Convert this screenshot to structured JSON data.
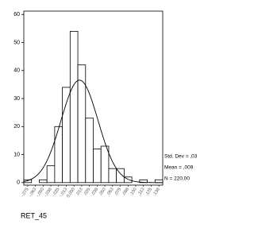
{
  "chart_data": {
    "type": "histogram",
    "x_label": "RET_45",
    "bins": [
      -0.08125,
      -0.06875,
      -0.05625,
      -0.04375,
      -0.03125,
      -0.01875,
      -0.00625,
      0.00625,
      0.01875,
      0.03125,
      0.04375,
      0.05625,
      0.06875,
      0.08125,
      0.09375,
      0.10625,
      0.11875,
      0.13125,
      0.14375
    ],
    "values": [
      1,
      0,
      1,
      6,
      20,
      34,
      54,
      42,
      23,
      12,
      13,
      5,
      5,
      2,
      0,
      1,
      0,
      1
    ],
    "color": "#ffffff",
    "xlim": [
      -0.08125,
      0.14375
    ],
    "xticks": [
      {
        "value": -0.075,
        "label": "-,075"
      },
      {
        "value": -0.0625,
        "label": "-,063"
      },
      {
        "value": -0.05,
        "label": "-,050"
      },
      {
        "value": -0.0375,
        "label": "-,038"
      },
      {
        "value": -0.025,
        "label": "-,025"
      },
      {
        "value": -0.0125,
        "label": "-,013"
      },
      {
        "value": 0,
        "label": "0,000"
      },
      {
        "value": 0.0125,
        "label": ",013"
      },
      {
        "value": 0.025,
        "label": ",025"
      },
      {
        "value": 0.0375,
        "label": ",038"
      },
      {
        "value": 0.05,
        "label": ",050"
      },
      {
        "value": 0.0625,
        "label": ",063"
      },
      {
        "value": 0.075,
        "label": ",075"
      },
      {
        "value": 0.0875,
        "label": ",088"
      },
      {
        "value": 0.1,
        "label": ",100"
      },
      {
        "value": 0.1125,
        "label": ",113"
      },
      {
        "value": 0.125,
        "label": ",125"
      },
      {
        "value": 0.1375,
        "label": ",138"
      }
    ],
    "ylim": [
      -0.9,
      61.2
    ],
    "yticks": [
      0,
      10,
      20,
      30,
      40,
      50,
      60
    ],
    "stats": [
      {
        "label": "Std. Dev = ,03",
        "value": 0.03
      },
      {
        "label": "Mean = ,009",
        "value": 0.009
      },
      {
        "label": "N = 220,00",
        "value": 220
      }
    ]
  }
}
